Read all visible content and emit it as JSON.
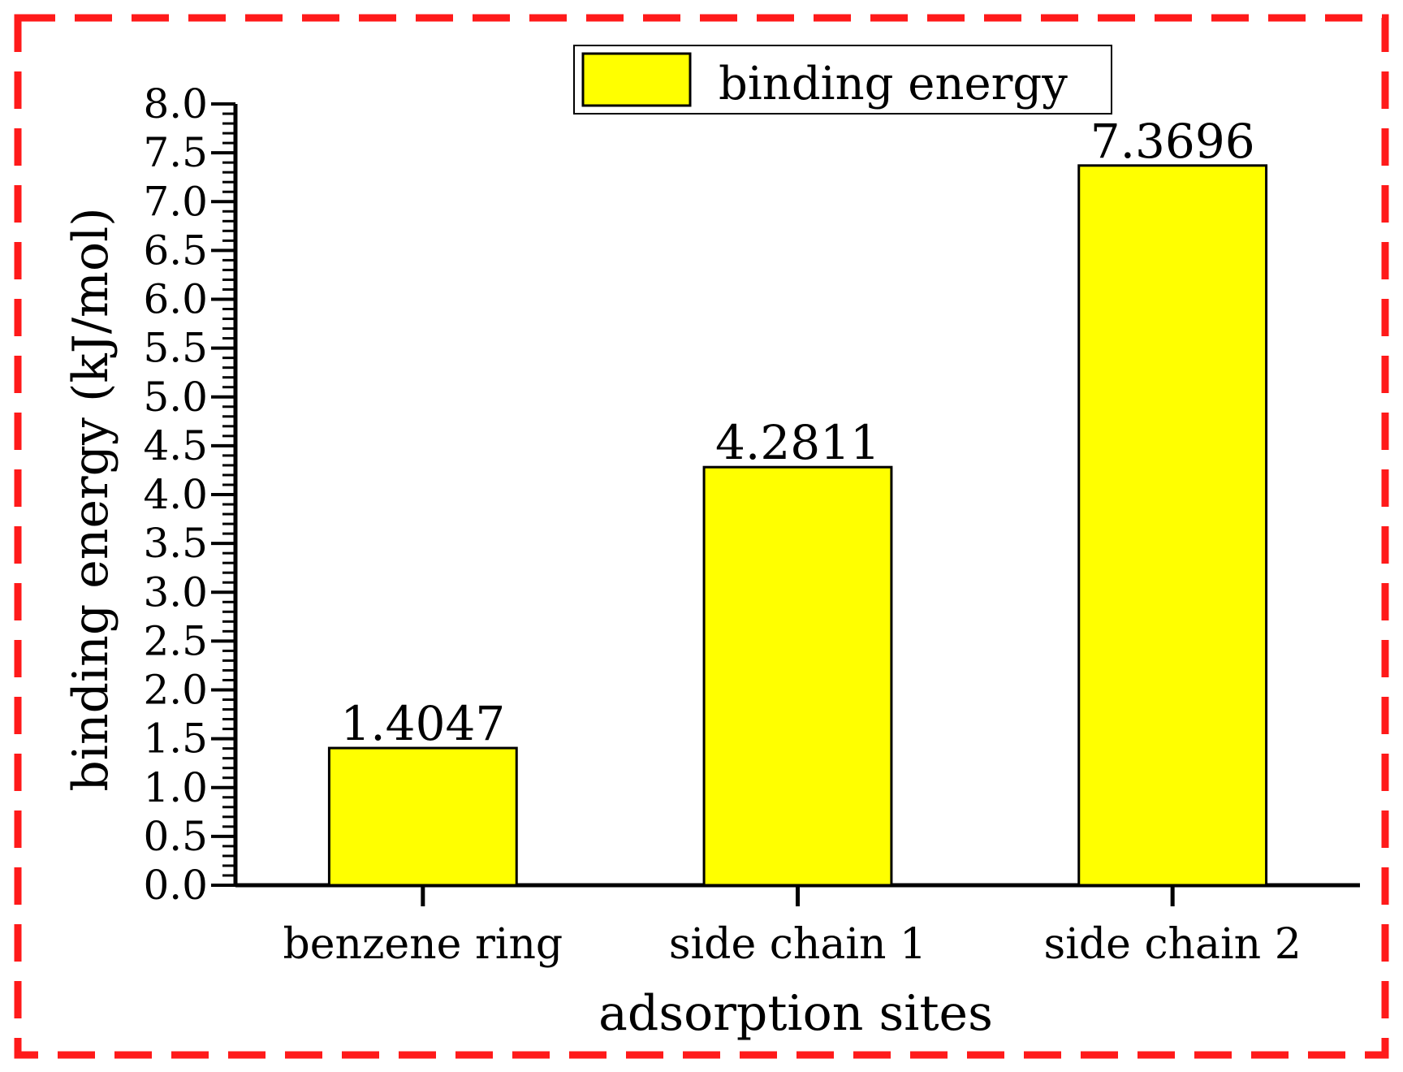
{
  "colors": {
    "frame": "#ff1a1a",
    "bar_fill": "#ffff00",
    "bar_stroke": "#000000",
    "axis": "#000000"
  },
  "chart_data": {
    "type": "bar",
    "categories": [
      "benzene ring",
      "side chain 1",
      "side chain 2"
    ],
    "series": [
      {
        "name": "binding energy",
        "values": [
          1.4047,
          4.2811,
          7.3696
        ]
      }
    ],
    "data_labels": [
      "1.4047",
      "4.2811",
      "7.3696"
    ],
    "xlabel": "adsorption sites",
    "ylabel": "binding energy (kJ/mol)",
    "ylim": [
      0,
      8
    ],
    "yticks": [
      "0.0",
      "0.5",
      "1.0",
      "1.5",
      "2.0",
      "2.5",
      "3.0",
      "3.5",
      "4.0",
      "4.5",
      "5.0",
      "5.5",
      "6.0",
      "6.5",
      "7.0",
      "7.5",
      "8.0"
    ],
    "grid": false,
    "legend_position": "top-right"
  }
}
